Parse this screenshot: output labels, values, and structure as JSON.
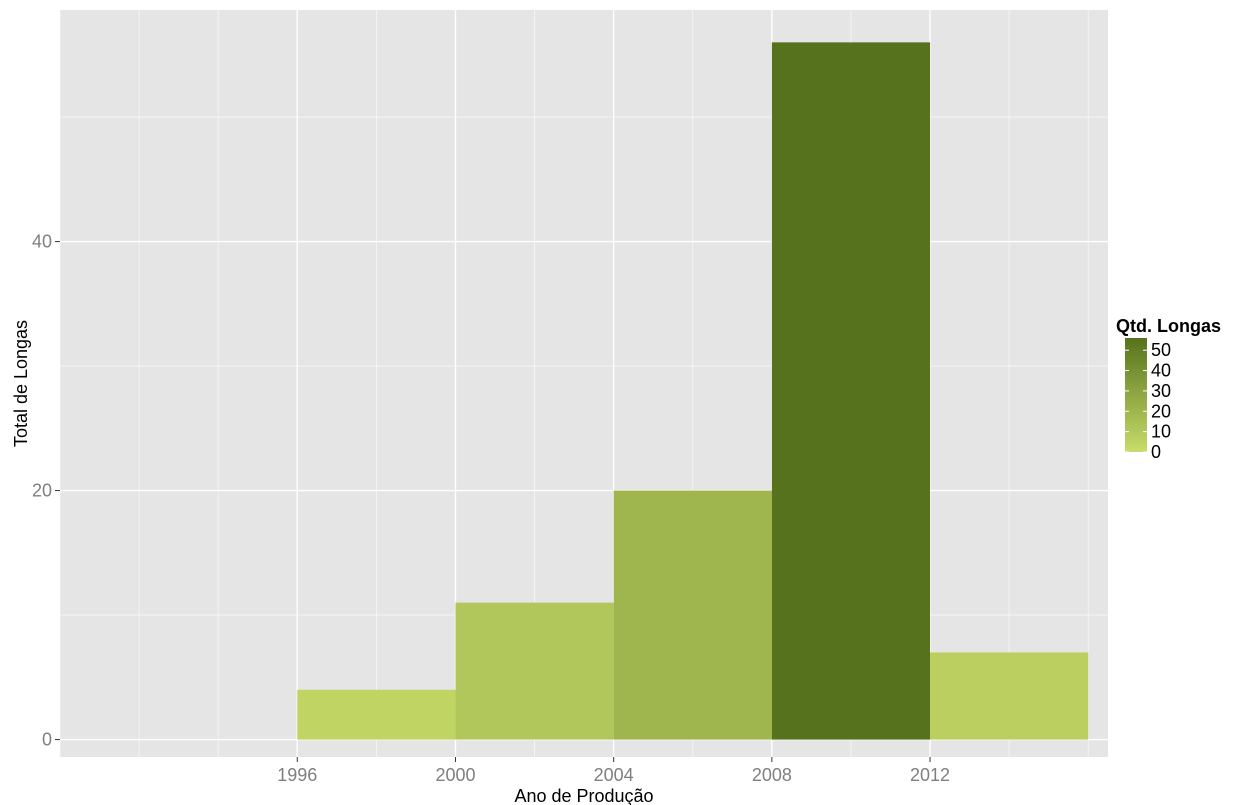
{
  "chart_data": {
    "type": "bar",
    "title": "",
    "xlabel": "Ano de Produção",
    "ylabel": "Total de Longas",
    "x_ticks": [
      1996,
      2000,
      2004,
      2008,
      2012
    ],
    "y_ticks": [
      0,
      20,
      40
    ],
    "xlim": [
      1990,
      2016.5
    ],
    "ylim": [
      -1.4,
      58.6
    ],
    "bins": [
      {
        "start": 1996,
        "end": 2000,
        "value": 4
      },
      {
        "start": 2000,
        "end": 2004,
        "value": 11
      },
      {
        "start": 2004,
        "end": 2008,
        "value": 20
      },
      {
        "start": 2008,
        "end": 2012,
        "value": 56
      },
      {
        "start": 2012,
        "end": 2016,
        "value": 7
      }
    ],
    "legend": {
      "title": "Qtd. Longas",
      "placement": "right",
      "ticks": [
        0,
        10,
        20,
        30,
        40,
        50
      ],
      "range": [
        0,
        56
      ],
      "color_low": "#c8dc6a",
      "color_high": "#56721c"
    },
    "grid": true,
    "panel_background": "#e5e5e5",
    "grid_color": "#ffffff"
  }
}
